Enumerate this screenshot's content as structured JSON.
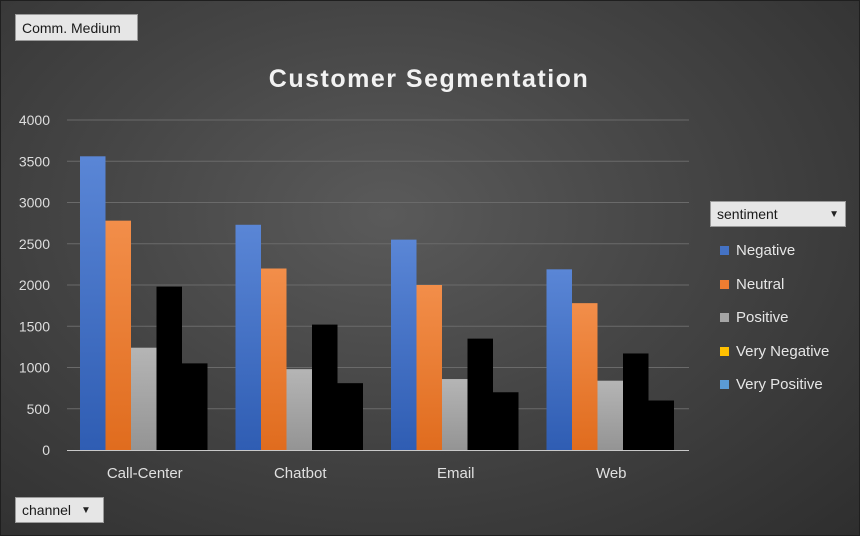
{
  "filter": {
    "label": "Comm. Medium"
  },
  "axis_field": {
    "label": "channel"
  },
  "legend_field": {
    "label": "sentiment"
  },
  "colors": {
    "Negative": "#4472C4",
    "Neutral": "#ED7D31",
    "Positive": "#A5A5A5",
    "Very Negative": "#FFC000",
    "Very Positive": "#5B9BD5"
  },
  "chart_data": {
    "type": "bar",
    "title": "Customer Segmentation",
    "xlabel": "",
    "ylabel": "",
    "categories": [
      "Call-Center",
      "Chatbot",
      "Email",
      "Web"
    ],
    "series": [
      {
        "name": "Negative",
        "values": [
          3560,
          2730,
          2550,
          2190
        ]
      },
      {
        "name": "Neutral",
        "values": [
          2780,
          2200,
          2000,
          1780
        ]
      },
      {
        "name": "Positive",
        "values": [
          1240,
          980,
          860,
          840
        ]
      },
      {
        "name": "Very Negative",
        "values": [
          1980,
          1520,
          1350,
          1170
        ]
      },
      {
        "name": "Very Positive",
        "values": [
          1050,
          810,
          700,
          600
        ]
      }
    ],
    "ylim": [
      0,
      4000
    ],
    "yticks": [
      0,
      500,
      1000,
      1500,
      2000,
      2500,
      3000,
      3500,
      4000
    ],
    "grid": true,
    "legend": "right"
  }
}
